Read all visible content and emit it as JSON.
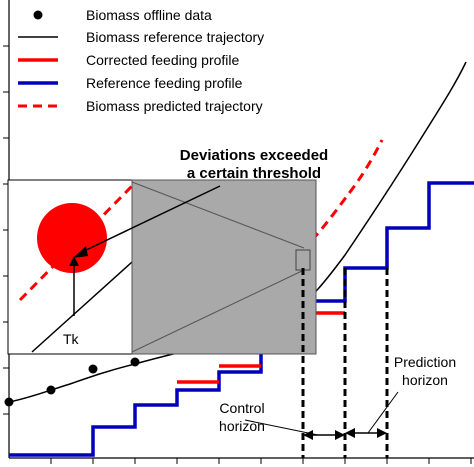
{
  "legend": {
    "offline": "Biomass offline data",
    "reference_trajectory": "Biomass reference trajectory",
    "corrected_feeding": "Corrected feeding profile",
    "reference_feeding": "Reference feeding profile",
    "predicted_trajectory": "Biomass predicted trajectory"
  },
  "annotations": {
    "deviation_line1": "Deviations exceeded",
    "deviation_line2": "a certain threshold",
    "tk": "Tk",
    "prediction_line1": "Prediction",
    "prediction_line2": "horizon",
    "control_line1": "Control",
    "control_line2": "horizon"
  },
  "colors": {
    "reference_trajectory": "#000000",
    "corrected_feeding": "#ff0000",
    "reference_feeding": "#0000bb",
    "predicted_trajectory": "#ff0000",
    "offline_data": "#000000",
    "zoom_box": "#a9a9a9",
    "threshold_circle": "#ff0000"
  }
}
